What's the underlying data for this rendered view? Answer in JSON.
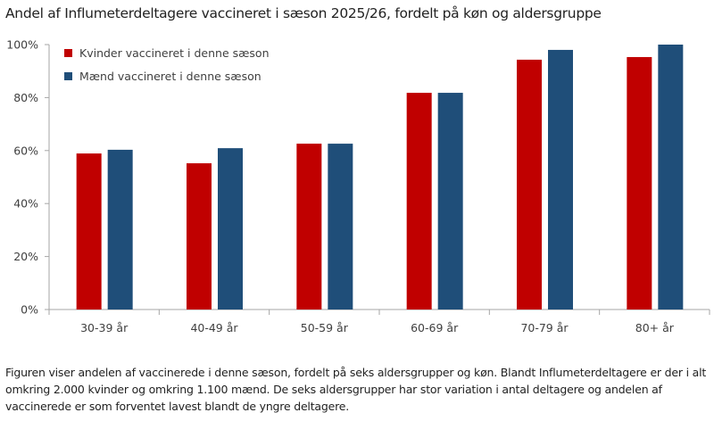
{
  "chart_data": {
    "type": "bar",
    "title": "Andel af Influmeterdeltagere vaccineret i sæson 2025/26, fordelt på køn og aldersgruppe",
    "categories": [
      "30-39 år",
      "40-49 år",
      "50-59 år",
      "60-69 år",
      "70-79 år",
      "80+ år"
    ],
    "series": [
      {
        "name": "Kvinder vaccineret i denne sæson",
        "color": "#C00000",
        "values": [
          58.9,
          55.2,
          62.6,
          81.8,
          94.3,
          95.3
        ]
      },
      {
        "name": "Mænd vaccineret i denne sæson",
        "color": "#1F4E79",
        "values": [
          60.3,
          60.9,
          62.6,
          81.8,
          98.0,
          100.0
        ]
      }
    ],
    "yticks": [
      "0%",
      "20%",
      "40%",
      "60%",
      "80%",
      "100%"
    ],
    "ylim": [
      0,
      100
    ],
    "grid": false,
    "legend": "top-left"
  },
  "caption": "Figuren viser andelen af vaccinerede i denne sæson, fordelt på seks aldersgrupper og  køn. Blandt Influmeterdeltagere er der i alt omkring 2.000 kvinder og omkring 1.100 mænd. De seks aldersgrupper har stor variation i antal deltagere og andelen af vaccinerede er som forventet lavest blandt de yngre deltagere."
}
